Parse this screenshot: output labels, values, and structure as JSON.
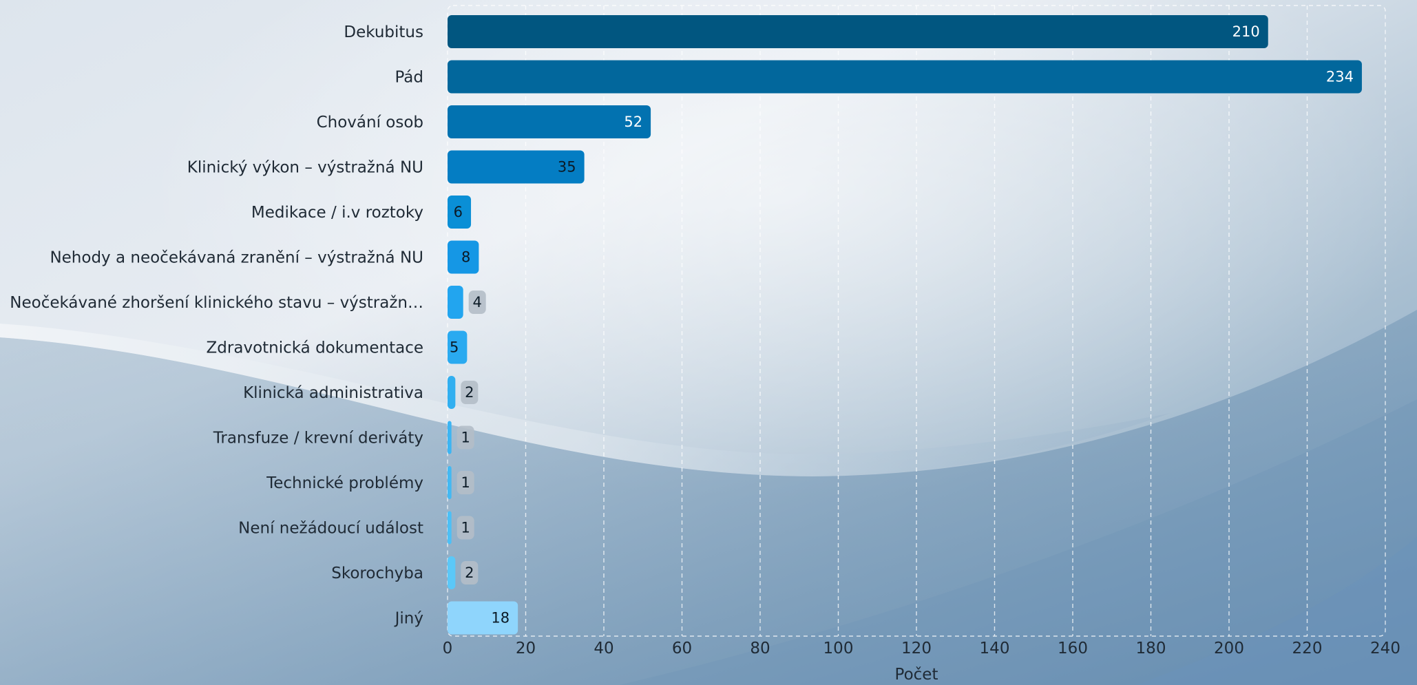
{
  "chart_data": {
    "type": "bar",
    "orientation": "horizontal",
    "categories": [
      "Dekubitus",
      "Pád",
      "Chování osob",
      "Klinický výkon – výstražná NU",
      "Medikace / i.v roztoky",
      "Nehody a neočekávaná zranění – výstražná NU",
      "Neočekávané zhoršení klinického stavu – výstražn…",
      "Zdravotnická dokumentace",
      "Klinická administrativa",
      "Transfuze / krevní deriváty",
      "Technické problémy",
      "Není nežádoucí událost",
      "Skorochyba",
      "Jiný"
    ],
    "values": [
      210,
      234,
      52,
      35,
      6,
      8,
      4,
      5,
      2,
      1,
      1,
      1,
      2,
      18
    ],
    "bar_colors": [
      "#015680",
      "#02679c",
      "#0272b0",
      "#047dc3",
      "#0a8fd6",
      "#1597e5",
      "#22a5ef",
      "#2aaaf0",
      "#31aff0",
      "#3cb5f3",
      "#43b9f3",
      "#4cc0f6",
      "#5bc8f8",
      "#8fd5fc"
    ],
    "xlabel": "Počet",
    "xlim": [
      0,
      240
    ],
    "xticks": [
      0,
      20,
      40,
      60,
      80,
      100,
      120,
      140,
      160,
      180,
      200,
      220,
      240
    ],
    "grid": true,
    "legend": "none"
  }
}
